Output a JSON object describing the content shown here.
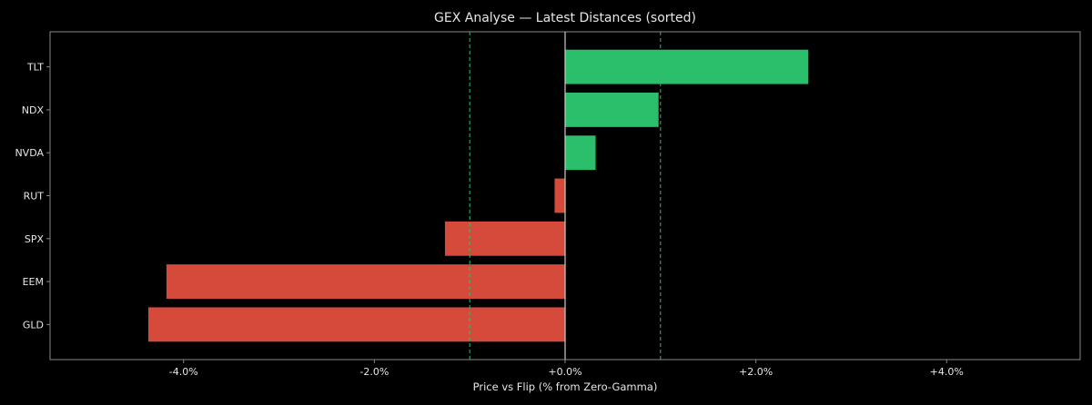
{
  "chart_data": {
    "type": "bar",
    "orientation": "horizontal",
    "title": "GEX Analyse — Latest Distances (sorted)",
    "xlabel": "Price vs Flip (% from Zero-Gamma)",
    "ylabel": "",
    "categories": [
      "TLT",
      "NDX",
      "NVDA",
      "RUT",
      "SPX",
      "EEM",
      "GLD"
    ],
    "values": [
      2.55,
      0.98,
      0.32,
      -0.11,
      -1.26,
      -4.18,
      -4.37
    ],
    "xlim": [
      -5.4,
      5.4
    ],
    "xticks": [
      -4,
      -2,
      0,
      2,
      4
    ],
    "xtick_labels": [
      "-4.0%",
      "-2.0%",
      "+0.0%",
      "+2.0%",
      "+4.0%"
    ],
    "reference_lines": [
      -1.0,
      1.0
    ],
    "zero_line": 0,
    "colors": {
      "positive": "#2bbf6b",
      "negative": "#d64a3c",
      "reference": "#2bbf6b",
      "zero": "#cccccc",
      "axes": "#888888",
      "text": "#e6e6e6",
      "background": "#000000"
    },
    "grid": false,
    "legend": false
  }
}
